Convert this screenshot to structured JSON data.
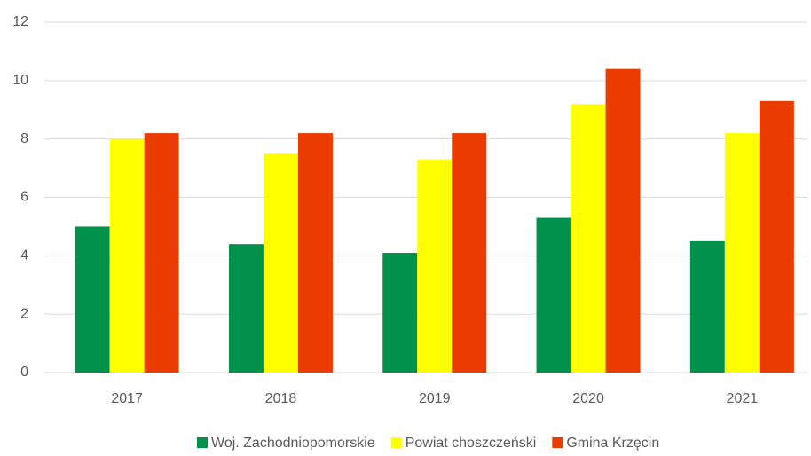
{
  "chart_data": {
    "type": "bar",
    "categories": [
      "2017",
      "2018",
      "2019",
      "2020",
      "2021"
    ],
    "series": [
      {
        "name": "Woj. Zachodniopomorskie",
        "color": "#00924a",
        "values": [
          5,
          4.4,
          4.1,
          5.3,
          4.5
        ]
      },
      {
        "name": "Powiat choszczeński",
        "color": "#ffff00",
        "values": [
          8,
          7.5,
          7.3,
          9.2,
          8.2
        ]
      },
      {
        "name": "Gmina Krzęcin",
        "color": "#eb3c00",
        "values": [
          8.2,
          8.2,
          8.2,
          10.4,
          9.3
        ]
      }
    ],
    "ylim": [
      0,
      12
    ],
    "yticks": [
      0,
      2,
      4,
      6,
      8,
      10,
      12
    ],
    "grid": true,
    "legend": "bottom"
  }
}
